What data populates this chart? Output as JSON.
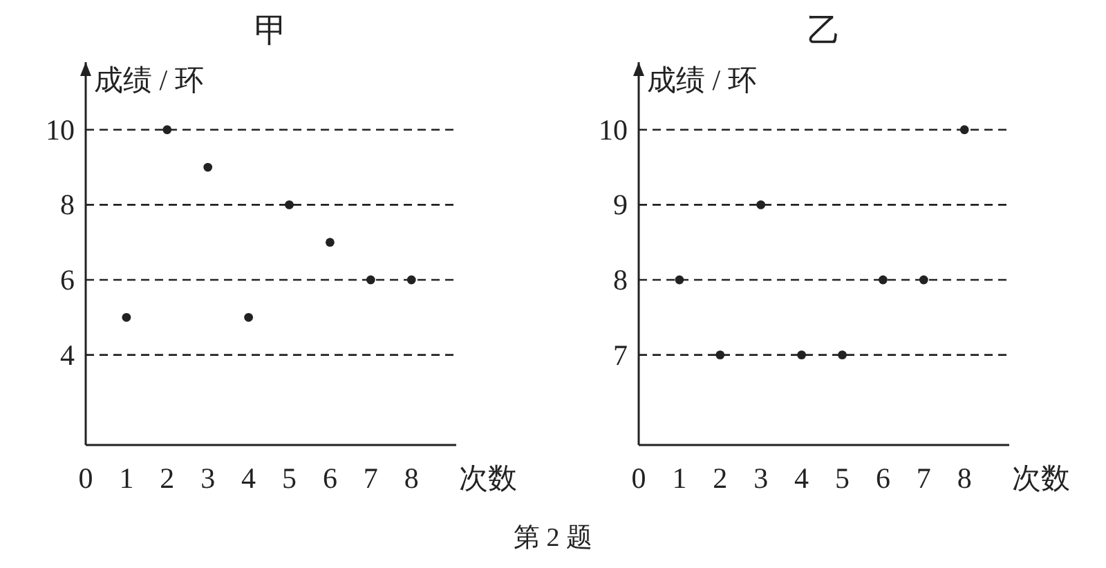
{
  "chart_data": [
    {
      "type": "scatter",
      "title": "甲",
      "xlabel": "次数",
      "ylabel": "成绩 / 环",
      "x": [
        1,
        2,
        3,
        4,
        5,
        6,
        7,
        8
      ],
      "values": [
        5,
        10,
        9,
        5,
        8,
        7,
        6,
        6
      ],
      "color": "#222222",
      "marker": "circle",
      "grid": "y",
      "xlim": [
        0,
        9.1
      ],
      "ylim": [
        1.6,
        11.8
      ],
      "xticks": [
        0,
        1,
        2,
        3,
        4,
        5,
        6,
        7,
        8
      ],
      "yticks": [
        4,
        6,
        8,
        10
      ],
      "annotations": [
        "第 2 题"
      ]
    },
    {
      "type": "scatter",
      "title": "乙",
      "xlabel": "次数",
      "ylabel": "成绩 / 环",
      "x": [
        1,
        2,
        3,
        4,
        5,
        6,
        7,
        8
      ],
      "values": [
        8,
        7,
        9,
        7,
        7,
        8,
        8,
        10
      ],
      "color": "#222222",
      "marker": "circle",
      "grid": "y",
      "xlim": [
        0,
        9.1
      ],
      "ylim": [
        5.8,
        10.9
      ],
      "xticks": [
        0,
        1,
        2,
        3,
        4,
        5,
        6,
        7,
        8
      ],
      "yticks": [
        7,
        8,
        9,
        10
      ]
    }
  ]
}
